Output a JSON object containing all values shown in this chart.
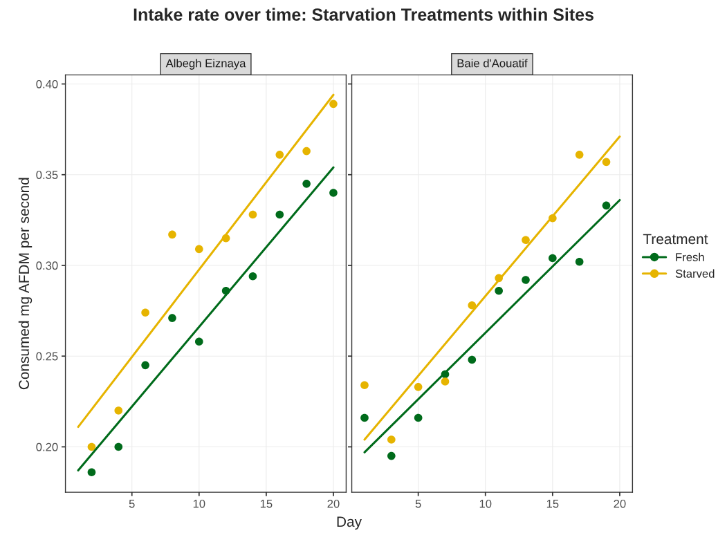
{
  "chart_data": [
    {
      "type": "scatter",
      "title": "Intake rate over time: Starvation Treatments within Sites",
      "subtitle": "Albegh Eiznaya",
      "xlabel": "Day",
      "ylabel": "Consumed mg AFDM per second",
      "legend_title": "Treatment",
      "legend": "right",
      "xlim": [
        0.05,
        20.95
      ],
      "xticks": [
        5,
        10,
        15,
        20
      ],
      "ylim": [
        0.175,
        0.405
      ],
      "yticks": [
        {
          "value": 0.2,
          "label": "0.20"
        },
        {
          "value": 0.25,
          "label": "0.25"
        },
        {
          "value": 0.3,
          "label": "0.30"
        },
        {
          "value": 0.35,
          "label": "0.35"
        },
        {
          "value": 0.4,
          "label": "0.40"
        }
      ],
      "grid": true,
      "series": [
        {
          "name": "Fresh",
          "color": "#006b1b",
          "marker": "circle",
          "x": [
            2,
            4,
            6,
            8,
            10,
            12,
            14,
            16,
            18,
            20
          ],
          "values": [
            0.186,
            0.2,
            0.245,
            0.271,
            0.258,
            0.286,
            0.294,
            0.328,
            0.345,
            0.34
          ]
        },
        {
          "name": "Starved",
          "color": "#e6b400",
          "marker": "circle",
          "x": [
            2,
            4,
            6,
            8,
            10,
            12,
            14,
            16,
            18,
            20
          ],
          "values": [
            0.2,
            0.22,
            0.274,
            0.317,
            0.309,
            0.315,
            0.328,
            0.361,
            0.363,
            0.389
          ]
        },
        {
          "type": "line",
          "color": "#006b1b",
          "x": [
            1,
            20
          ],
          "values": [
            0.187,
            0.354
          ]
        },
        {
          "type": "line",
          "color": "#e6b400",
          "x": [
            1,
            20
          ],
          "values": [
            0.211,
            0.394
          ]
        }
      ]
    },
    {
      "type": "scatter",
      "subtitle": "Baie d'Aouatif",
      "tick_labels": "x",
      "xlim": [
        0.05,
        20.95
      ],
      "xticks": [
        5,
        10,
        15,
        20
      ],
      "ylim": [
        0.175,
        0.405
      ],
      "yticks": [
        0.2,
        0.25,
        0.3,
        0.35,
        0.4
      ],
      "grid": true,
      "series": [
        {
          "color": "#006b1b",
          "marker": "circle",
          "x": [
            1,
            3,
            5,
            7,
            9,
            11,
            13,
            15,
            17,
            19
          ],
          "values": [
            0.216,
            0.195,
            0.216,
            0.24,
            0.248,
            0.286,
            0.292,
            0.304,
            0.302,
            0.333
          ]
        },
        {
          "color": "#e6b400",
          "marker": "circle",
          "x": [
            1,
            3,
            5,
            7,
            9,
            11,
            13,
            15,
            17,
            19
          ],
          "values": [
            0.234,
            0.204,
            0.233,
            0.236,
            0.278,
            0.293,
            0.314,
            0.326,
            0.361,
            0.357
          ]
        },
        {
          "type": "line",
          "color": "#006b1b",
          "x": [
            1,
            20
          ],
          "values": [
            0.197,
            0.336
          ]
        },
        {
          "type": "line",
          "color": "#e6b400",
          "x": [
            1,
            20
          ],
          "values": [
            0.204,
            0.371
          ]
        }
      ]
    }
  ]
}
